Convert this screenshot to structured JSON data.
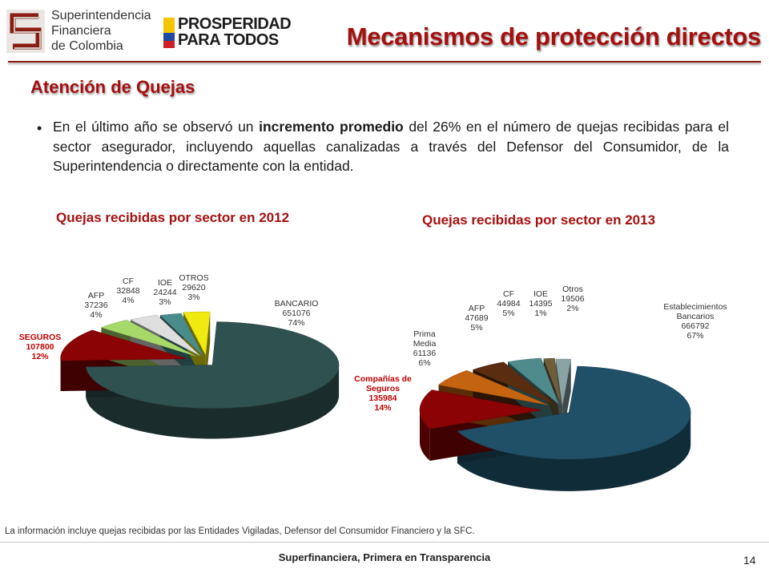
{
  "header": {
    "logo_sfc_text": "Superintendencia\nFinanciera\nde Colombia",
    "logo_pp_line1": "PROSPERIDAD",
    "logo_pp_line2": "PARA TODOS",
    "title": "Mecanismos de protección directos"
  },
  "section_title": "Atención de Quejas",
  "bullet": {
    "pre": "En el último año se observó un ",
    "bold": "incremento promedio",
    "post": " del 26% en el número de quejas recibidas para el sector asegurador, incluyendo aquellas canalizadas a través del Defensor del Consumidor, de la Superintendencia o directamente con la entidad."
  },
  "chart_data": [
    {
      "type": "pie",
      "title": "Quejas recibidas por sector en 2012",
      "slices": [
        {
          "label": "BANCARIO",
          "value": 651076,
          "percent": "74%",
          "color": "#2f5150"
        },
        {
          "label": "SEGUROS",
          "value": 107800,
          "percent": "12%",
          "color": "#8b0304"
        },
        {
          "label": "AFP",
          "value": 37236,
          "percent": "4%",
          "color": "#a7d96a"
        },
        {
          "label": "CF",
          "value": 32848,
          "percent": "4%",
          "color": "#dedede"
        },
        {
          "label": "IOE",
          "value": 24244,
          "percent": "3%",
          "color": "#4a8c8c"
        },
        {
          "label": "OTROS",
          "value": 29620,
          "percent": "3%",
          "color": "#f0ea10"
        }
      ]
    },
    {
      "type": "pie",
      "title": "Quejas recibidas por sector en 2013",
      "slices": [
        {
          "label": "Establecimientos Bancarios",
          "value": 666792,
          "percent": "67%",
          "color": "#1f5068"
        },
        {
          "label": "Compañías de Seguros",
          "value": 135984,
          "percent": "14%",
          "color": "#8b0304"
        },
        {
          "label": "Prima Media",
          "value": 61136,
          "percent": "6%",
          "color": "#c46410"
        },
        {
          "label": "AFP",
          "value": 47689,
          "percent": "5%",
          "color": "#5a2d10"
        },
        {
          "label": "CF",
          "value": 44984,
          "percent": "5%",
          "color": "#4f8a8c"
        },
        {
          "label": "IOE",
          "value": 14395,
          "percent": "1%",
          "color": "#6e5e3c"
        },
        {
          "label": "Otros",
          "value": 19506,
          "percent": "2%",
          "color": "#8aa4a6"
        }
      ]
    }
  ],
  "footnote": "La información incluye quejas recibidas por las Entidades Vigiladas, Defensor del Consumidor Financiero y la SFC.",
  "footer": "Superfinanciera, Primera en Transparencia",
  "page_number": "14"
}
